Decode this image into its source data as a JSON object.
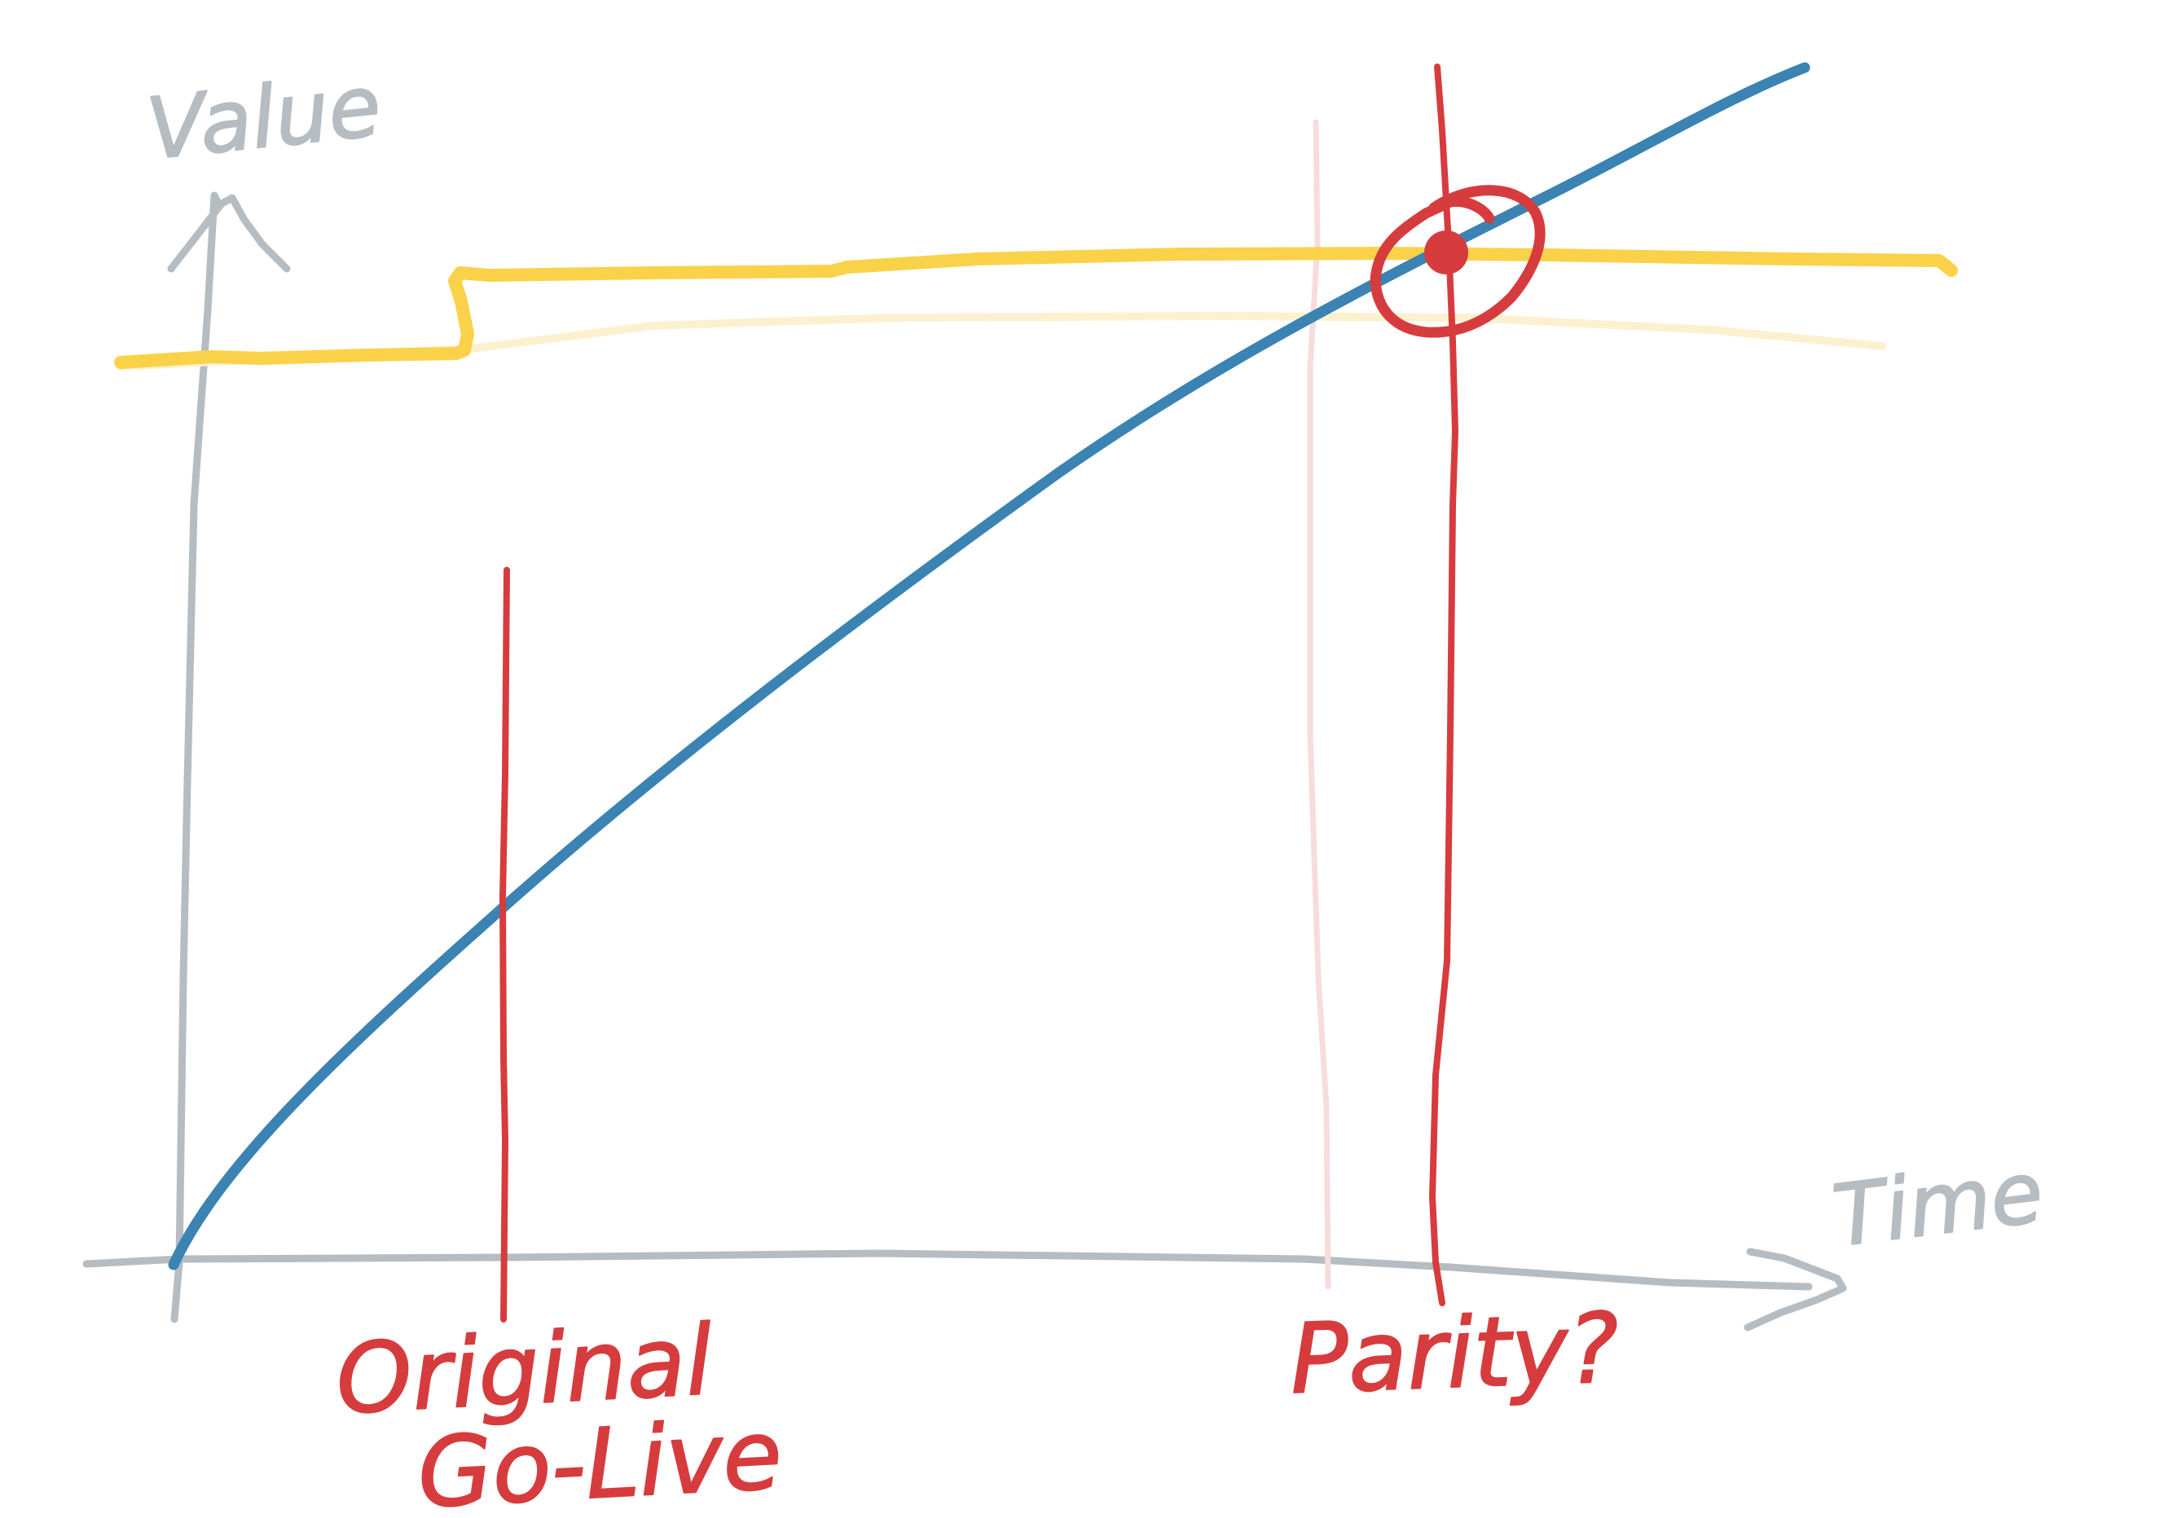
{
  "axes": {
    "y_label": "Value",
    "x_label": "Time",
    "color": "#b5bcc2"
  },
  "markers": {
    "go_live": {
      "line1": "Original",
      "line2": "Go-Live",
      "color": "#d63c3e"
    },
    "parity": {
      "label": "Parity?",
      "color": "#d63c3e",
      "ghost_color": "#f7dcdc"
    }
  },
  "curves": {
    "growth": {
      "color": "#3a83b3"
    },
    "benchmark": {
      "color": "#f9d24a",
      "ghost_color": "#fcf1cf"
    }
  }
}
